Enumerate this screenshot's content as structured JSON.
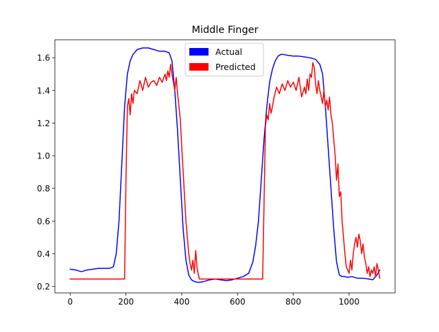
{
  "chart_data": {
    "type": "line",
    "title": "Middle Finger",
    "xlabel": "",
    "ylabel": "",
    "xlim": [
      -55,
      1165
    ],
    "ylim": [
      0.16,
      1.71
    ],
    "xticks": [
      0,
      200,
      400,
      600,
      800,
      1000
    ],
    "yticks": [
      0.2,
      0.4,
      0.6,
      0.8,
      1.0,
      1.2,
      1.4,
      1.6
    ],
    "ytick_labels": [
      "0.2",
      "0.4",
      "0.6",
      "0.8",
      "1.0",
      "1.2",
      "1.4",
      "1.6"
    ],
    "grid": false,
    "legend_position": "top-center",
    "series": [
      {
        "name": "Actual",
        "color": "#0000ff",
        "x": [
          0,
          20,
          40,
          60,
          80,
          100,
          120,
          140,
          155,
          165,
          175,
          185,
          195,
          205,
          215,
          225,
          240,
          260,
          280,
          300,
          320,
          340,
          355,
          365,
          375,
          385,
          395,
          405,
          415,
          425,
          435,
          445,
          455,
          465,
          480,
          500,
          520,
          540,
          560,
          580,
          600,
          620,
          640,
          655,
          665,
          675,
          685,
          695,
          705,
          715,
          725,
          735,
          745,
          755,
          765,
          780,
          800,
          820,
          840,
          860,
          880,
          895,
          905,
          915,
          925,
          935,
          945,
          955,
          965,
          975,
          985,
          995,
          1010,
          1030,
          1050,
          1070,
          1085,
          1100,
          1110
        ],
        "y": [
          0.305,
          0.3,
          0.29,
          0.3,
          0.305,
          0.31,
          0.31,
          0.31,
          0.32,
          0.4,
          0.6,
          0.95,
          1.3,
          1.5,
          1.58,
          1.62,
          1.65,
          1.66,
          1.66,
          1.65,
          1.64,
          1.64,
          1.63,
          1.58,
          1.4,
          1.15,
          0.85,
          0.55,
          0.36,
          0.27,
          0.24,
          0.23,
          0.225,
          0.225,
          0.23,
          0.24,
          0.245,
          0.24,
          0.235,
          0.24,
          0.25,
          0.26,
          0.28,
          0.35,
          0.45,
          0.6,
          0.85,
          1.1,
          1.3,
          1.45,
          1.53,
          1.58,
          1.61,
          1.62,
          1.62,
          1.615,
          1.61,
          1.61,
          1.605,
          1.6,
          1.59,
          1.56,
          1.5,
          1.3,
          1.05,
          0.8,
          0.55,
          0.35,
          0.27,
          0.26,
          0.26,
          0.255,
          0.26,
          0.25,
          0.25,
          0.245,
          0.24,
          0.27,
          0.3
        ]
      },
      {
        "name": "Predicted",
        "color": "#ff0000",
        "x": [
          0,
          50,
          100,
          150,
          190,
          195,
          200,
          205,
          210,
          215,
          220,
          225,
          230,
          240,
          250,
          260,
          270,
          280,
          290,
          300,
          310,
          320,
          330,
          340,
          345,
          350,
          355,
          360,
          365,
          370,
          375,
          380,
          385,
          390,
          395,
          400,
          405,
          410,
          415,
          420,
          425,
          430,
          435,
          440,
          445,
          450,
          455,
          460,
          463,
          470,
          500,
          550,
          600,
          650,
          680,
          690,
          695,
          700,
          705,
          710,
          715,
          720,
          725,
          730,
          740,
          750,
          760,
          770,
          780,
          790,
          800,
          810,
          820,
          830,
          840,
          845,
          850,
          855,
          860,
          865,
          870,
          875,
          880,
          885,
          890,
          895,
          900,
          905,
          910,
          915,
          920,
          925,
          930,
          935,
          940,
          945,
          950,
          955,
          960,
          965,
          970,
          975,
          980,
          985,
          990,
          995,
          1000,
          1005,
          1010,
          1015,
          1020,
          1025,
          1030,
          1035,
          1040,
          1045,
          1050,
          1055,
          1060,
          1065,
          1070,
          1075,
          1080,
          1085,
          1090,
          1095,
          1100,
          1105,
          1110
        ],
        "y": [
          0.245,
          0.245,
          0.245,
          0.245,
          0.245,
          0.245,
          0.85,
          1.3,
          1.35,
          1.25,
          1.38,
          1.32,
          1.4,
          1.38,
          1.46,
          1.4,
          1.48,
          1.42,
          1.45,
          1.46,
          1.43,
          1.48,
          1.45,
          1.5,
          1.46,
          1.52,
          1.48,
          1.56,
          1.5,
          1.45,
          1.4,
          1.48,
          1.38,
          1.3,
          1.22,
          1.05,
          0.9,
          0.75,
          0.6,
          0.5,
          0.4,
          0.34,
          0.3,
          0.36,
          0.28,
          0.42,
          0.31,
          0.27,
          0.245,
          0.245,
          0.245,
          0.245,
          0.245,
          0.245,
          0.245,
          0.245,
          0.7,
          1.18,
          1.25,
          1.22,
          1.32,
          1.26,
          1.3,
          1.35,
          1.42,
          1.38,
          1.44,
          1.4,
          1.46,
          1.42,
          1.45,
          1.4,
          1.48,
          1.36,
          1.42,
          1.38,
          1.47,
          1.4,
          1.5,
          1.48,
          1.57,
          1.54,
          1.44,
          1.38,
          1.46,
          1.4,
          1.36,
          1.32,
          1.4,
          1.3,
          1.34,
          1.28,
          1.36,
          1.25,
          1.2,
          1.1,
          1.0,
          0.85,
          0.95,
          0.75,
          0.78,
          0.6,
          0.5,
          0.4,
          0.32,
          0.3,
          0.28,
          0.36,
          0.3,
          0.4,
          0.46,
          0.5,
          0.44,
          0.52,
          0.48,
          0.4,
          0.46,
          0.38,
          0.34,
          0.28,
          0.32,
          0.26,
          0.3,
          0.28,
          0.32,
          0.26,
          0.34,
          0.3,
          0.25
        ]
      }
    ]
  }
}
